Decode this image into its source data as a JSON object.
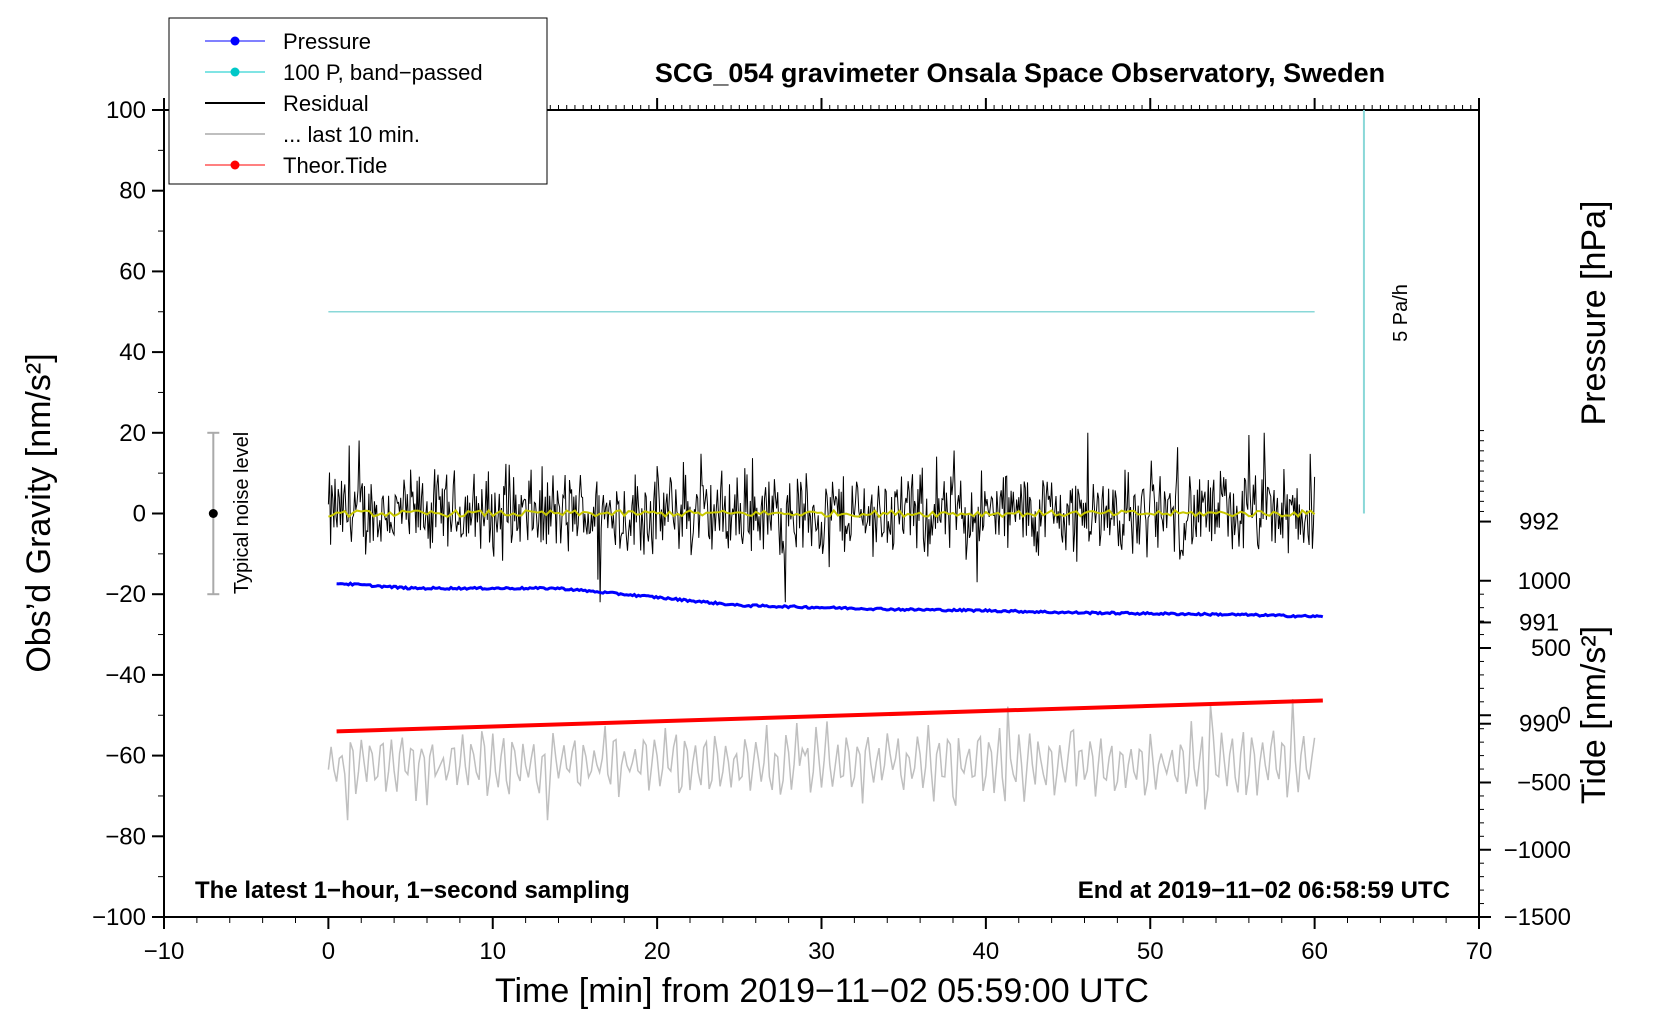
{
  "chart_data": {
    "type": "line",
    "title": "SCG_054 gravimeter Onsala Space Observatory, Sweden",
    "xlabel": "Time [min] from 2019−11−02 05:59:00 UTC",
    "ylabel_left": "Obs’d Gravity [nm/s²]",
    "ylabel_right_pressure": "Pressure [hPa]",
    "ylabel_right_tide": "Tide [nm/s²]",
    "xlim": [
      -10,
      70
    ],
    "ylim": [
      -100,
      100
    ],
    "x_ticks": [
      -10,
      0,
      10,
      20,
      30,
      40,
      50,
      60,
      70
    ],
    "x_tick_labels": [
      "−10",
      "0",
      "10",
      "20",
      "30",
      "40",
      "50",
      "60",
      "70"
    ],
    "y_ticks": [
      -100,
      -80,
      -60,
      -40,
      -20,
      0,
      20,
      40,
      60,
      80,
      100
    ],
    "y_tick_labels": [
      "−100",
      "−80",
      "−60",
      "−40",
      "−20",
      "0",
      "20",
      "40",
      "60",
      "80",
      "100"
    ],
    "pressure_axis": {
      "ticks": [
        990,
        991,
        992
      ],
      "tick_labels": [
        "990",
        "991",
        "992"
      ],
      "gravity_equivalent": [
        -52.1,
        -27.0,
        -2.0
      ]
    },
    "tide_axis": {
      "ticks": [
        -1500,
        -1000,
        -500,
        0,
        500,
        1000
      ],
      "tick_labels": [
        "−1500",
        "−1000",
        "−500",
        "0",
        "500",
        "1000"
      ]
    },
    "legend": [
      {
        "label": "Pressure",
        "color": "#0000ff",
        "marker": true
      },
      {
        "label": "100 P, band−passed",
        "color": "#00c8c8",
        "marker": true
      },
      {
        "label": "Residual",
        "color": "#000000",
        "marker": false
      },
      {
        "label": "... last 10 min.",
        "color": "#bfbfbf",
        "marker": false
      },
      {
        "label": "Theor.Tide",
        "color": "#ff0000",
        "marker": true
      }
    ],
    "series": [
      {
        "name": "Pressure",
        "color": "#0000ff",
        "unit": "hPa",
        "x": [
          0.5,
          5,
          10,
          14,
          20,
          25,
          30,
          35,
          40,
          45,
          50,
          55,
          60.5
        ],
        "y": [
          991.39,
          991.34,
          991.34,
          991.34,
          991.25,
          991.17,
          991.15,
          991.13,
          991.12,
          991.1,
          991.09,
          991.08,
          991.06
        ]
      },
      {
        "name": "100 P, band−passed",
        "color": "#00c8c8",
        "x": [
          0,
          60
        ],
        "y": [
          50,
          50
        ]
      },
      {
        "name": "Residual",
        "color": "#000000",
        "x_range": [
          0,
          60
        ],
        "center": 0,
        "spread": 8,
        "min": -22,
        "max": 20
      },
      {
        "name": "Smoothed residual",
        "color": "#c8c800",
        "x_range": [
          0,
          60
        ],
        "y_approx": 0
      },
      {
        "name": "... last 10 min.",
        "color": "#bfbfbf",
        "x_range": [
          0,
          60
        ],
        "center": -62,
        "min": -76,
        "max": -43
      },
      {
        "name": "Theor.Tide",
        "color": "#ff0000",
        "unit": "nm/s²",
        "x": [
          0.5,
          60.5
        ],
        "y": [
          -120,
          110
        ]
      }
    ],
    "annotations": {
      "noise_label": "Typical noise level",
      "noise_bar": {
        "x": -7,
        "center": 0,
        "half_range": 20
      },
      "rate_label": "5 Pa/h",
      "rate_bar": {
        "x": 63,
        "y_from": 0,
        "y_to": 100
      },
      "bottom_left": "The latest 1−hour, 1−second sampling",
      "bottom_right": "End at 2019−11−02 06:58:59 UTC"
    }
  }
}
